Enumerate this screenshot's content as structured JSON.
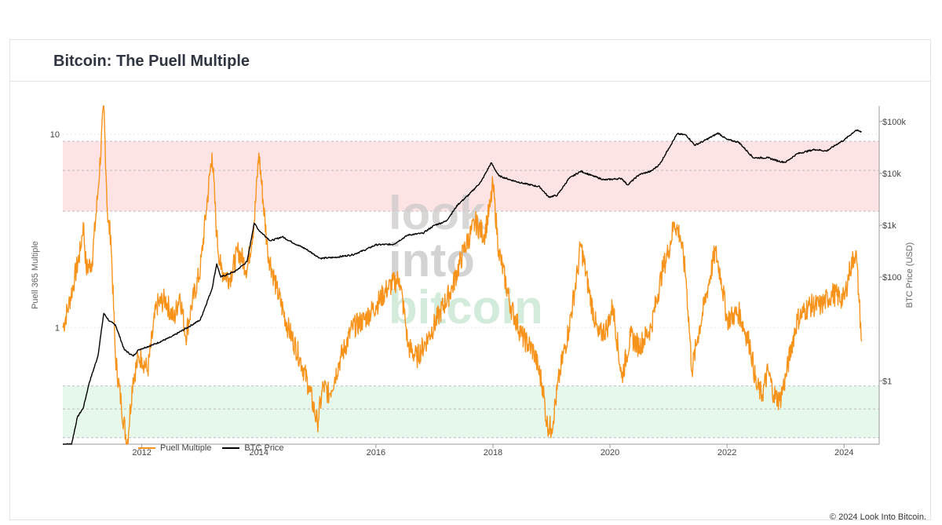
{
  "header": {
    "title": "Bitcoin: The Puell Multiple"
  },
  "legend": {
    "puell_label": "Puell Multiple",
    "btc_label": "BTC Price"
  },
  "footer": {
    "copyright": "© 2024 Look Into Bitcoin."
  },
  "watermark": {
    "line1": "look",
    "line2": "into",
    "line3": "bitcoin"
  },
  "colors": {
    "puell": "#f7931a",
    "btc": "#000000",
    "red_zone": "#fde3e3",
    "green_zone": "#e6f8ec",
    "grid": "#e6e6e6"
  },
  "chart_data": {
    "type": "line",
    "title": "Bitcoin: The Puell Multiple",
    "x_ticks": [
      "2012",
      "2014",
      "2016",
      "2018",
      "2020",
      "2022",
      "2024"
    ],
    "x_range": [
      2010.65,
      2024.6
    ],
    "left_axis": {
      "label": "Puell 365 Multiple",
      "scale": "log",
      "range": [
        0.25,
        14
      ],
      "ticks": [
        {
          "value": 1,
          "label": "1"
        },
        {
          "value": 10,
          "label": "10"
        }
      ]
    },
    "right_axis": {
      "label": "BTC Price (USD)",
      "scale": "log",
      "range": [
        0.06,
        200000
      ],
      "ticks": [
        {
          "value": 1,
          "label": "$1"
        },
        {
          "value": 100,
          "label": "$100"
        },
        {
          "value": 1000,
          "label": "$1k"
        },
        {
          "value": 10000,
          "label": "$10k"
        },
        {
          "value": 100000,
          "label": "$100k"
        }
      ]
    },
    "bands": [
      {
        "name": "red",
        "from": 4,
        "to": 9.2,
        "midline": 6.5
      },
      {
        "name": "green",
        "from": 0.27,
        "to": 0.5,
        "midline": 0.38
      }
    ],
    "grid": true,
    "legend_position": "bottom-left",
    "series": [
      {
        "name": "Puell Multiple",
        "axis": "left",
        "x": [
          2010.65,
          2010.75,
          2010.85,
          2010.95,
          2011.0,
          2011.05,
          2011.15,
          2011.25,
          2011.35,
          2011.42,
          2011.47,
          2011.55,
          2011.65,
          2011.75,
          2011.85,
          2011.95,
          2012.0,
          2012.1,
          2012.25,
          2012.4,
          2012.55,
          2012.65,
          2012.75,
          2012.85,
          2013.0,
          2013.1,
          2013.2,
          2013.28,
          2013.35,
          2013.5,
          2013.65,
          2013.8,
          2013.92,
          2014.0,
          2014.15,
          2014.3,
          2014.5,
          2014.7,
          2014.85,
          2015.0,
          2015.1,
          2015.2,
          2015.4,
          2015.6,
          2015.8,
          2016.0,
          2016.2,
          2016.4,
          2016.5,
          2016.55,
          2016.7,
          2016.9,
          2017.1,
          2017.3,
          2017.5,
          2017.7,
          2017.85,
          2017.95,
          2018.0,
          2018.1,
          2018.3,
          2018.5,
          2018.7,
          2018.85,
          2018.92,
          2019.0,
          2019.15,
          2019.3,
          2019.45,
          2019.5,
          2019.65,
          2019.8,
          2019.95,
          2020.05,
          2020.2,
          2020.35,
          2020.5,
          2020.7,
          2020.9,
          2021.0,
          2021.1,
          2021.2,
          2021.3,
          2021.4,
          2021.5,
          2021.65,
          2021.8,
          2021.9,
          2022.0,
          2022.2,
          2022.4,
          2022.5,
          2022.6,
          2022.7,
          2022.8,
          2022.9,
          2023.0,
          2023.1,
          2023.2,
          2023.4,
          2023.6,
          2023.8,
          2024.0,
          2024.1,
          2024.2,
          2024.25,
          2024.3
        ],
        "values": [
          1.0,
          1.3,
          1.8,
          2.5,
          3.5,
          2.0,
          2.2,
          5.0,
          14.0,
          3.5,
          3.0,
          0.7,
          0.4,
          0.25,
          0.55,
          0.7,
          0.7,
          0.6,
          1.3,
          1.4,
          1.1,
          1.5,
          0.9,
          1.3,
          2.0,
          4.0,
          8.0,
          3.0,
          2.0,
          1.8,
          2.5,
          2.0,
          3.5,
          8.0,
          2.5,
          1.6,
          1.0,
          0.7,
          0.5,
          0.32,
          0.5,
          0.45,
          0.7,
          1.0,
          1.1,
          1.3,
          1.6,
          1.8,
          1.1,
          0.8,
          0.7,
          0.9,
          1.2,
          1.6,
          2.5,
          3.5,
          3.0,
          4.2,
          5.5,
          2.5,
          1.3,
          0.9,
          0.75,
          0.5,
          0.32,
          0.3,
          0.6,
          1.0,
          2.0,
          2.7,
          1.5,
          0.9,
          1.0,
          1.3,
          0.55,
          0.9,
          0.8,
          1.0,
          2.0,
          2.5,
          3.5,
          3.0,
          1.8,
          0.6,
          0.9,
          1.5,
          2.5,
          1.8,
          1.1,
          1.2,
          0.8,
          0.5,
          0.45,
          0.6,
          0.45,
          0.42,
          0.55,
          0.8,
          1.1,
          1.3,
          1.3,
          1.5,
          1.4,
          2.0,
          2.5,
          1.5,
          0.85
        ]
      },
      {
        "name": "BTC Price",
        "axis": "right",
        "x": [
          2010.65,
          2010.8,
          2010.9,
          2011.0,
          2011.1,
          2011.25,
          2011.35,
          2011.45,
          2011.55,
          2011.7,
          2011.85,
          2011.95,
          2012.2,
          2012.5,
          2012.8,
          2013.0,
          2013.2,
          2013.28,
          2013.35,
          2013.6,
          2013.8,
          2013.92,
          2014.0,
          2014.2,
          2014.4,
          2014.6,
          2014.8,
          2015.05,
          2015.3,
          2015.6,
          2015.8,
          2016.0,
          2016.3,
          2016.55,
          2016.8,
          2017.0,
          2017.2,
          2017.4,
          2017.6,
          2017.8,
          2017.97,
          2018.1,
          2018.3,
          2018.5,
          2018.8,
          2018.95,
          2019.1,
          2019.3,
          2019.5,
          2019.7,
          2019.9,
          2020.2,
          2020.3,
          2020.5,
          2020.7,
          2020.85,
          2021.0,
          2021.15,
          2021.3,
          2021.45,
          2021.6,
          2021.85,
          2022.0,
          2022.2,
          2022.45,
          2022.7,
          2022.9,
          2023.0,
          2023.2,
          2023.5,
          2023.7,
          2023.9,
          2024.0,
          2024.2,
          2024.3
        ],
        "values": [
          0.06,
          0.06,
          0.2,
          0.3,
          0.9,
          3,
          20,
          14,
          12,
          4,
          3,
          4,
          5,
          7,
          11,
          15,
          60,
          180,
          100,
          130,
          200,
          1100,
          800,
          500,
          600,
          450,
          350,
          230,
          240,
          270,
          330,
          420,
          430,
          650,
          700,
          1000,
          1200,
          2500,
          4000,
          7000,
          16000,
          9000,
          7500,
          6500,
          5500,
          3500,
          3800,
          8000,
          11000,
          9000,
          7500,
          8000,
          6000,
          9500,
          11000,
          15000,
          30000,
          58000,
          55000,
          35000,
          42000,
          60000,
          45000,
          40000,
          20000,
          20000,
          17000,
          16500,
          24000,
          29000,
          27000,
          38000,
          44000,
          68000,
          63000
        ]
      }
    ]
  }
}
